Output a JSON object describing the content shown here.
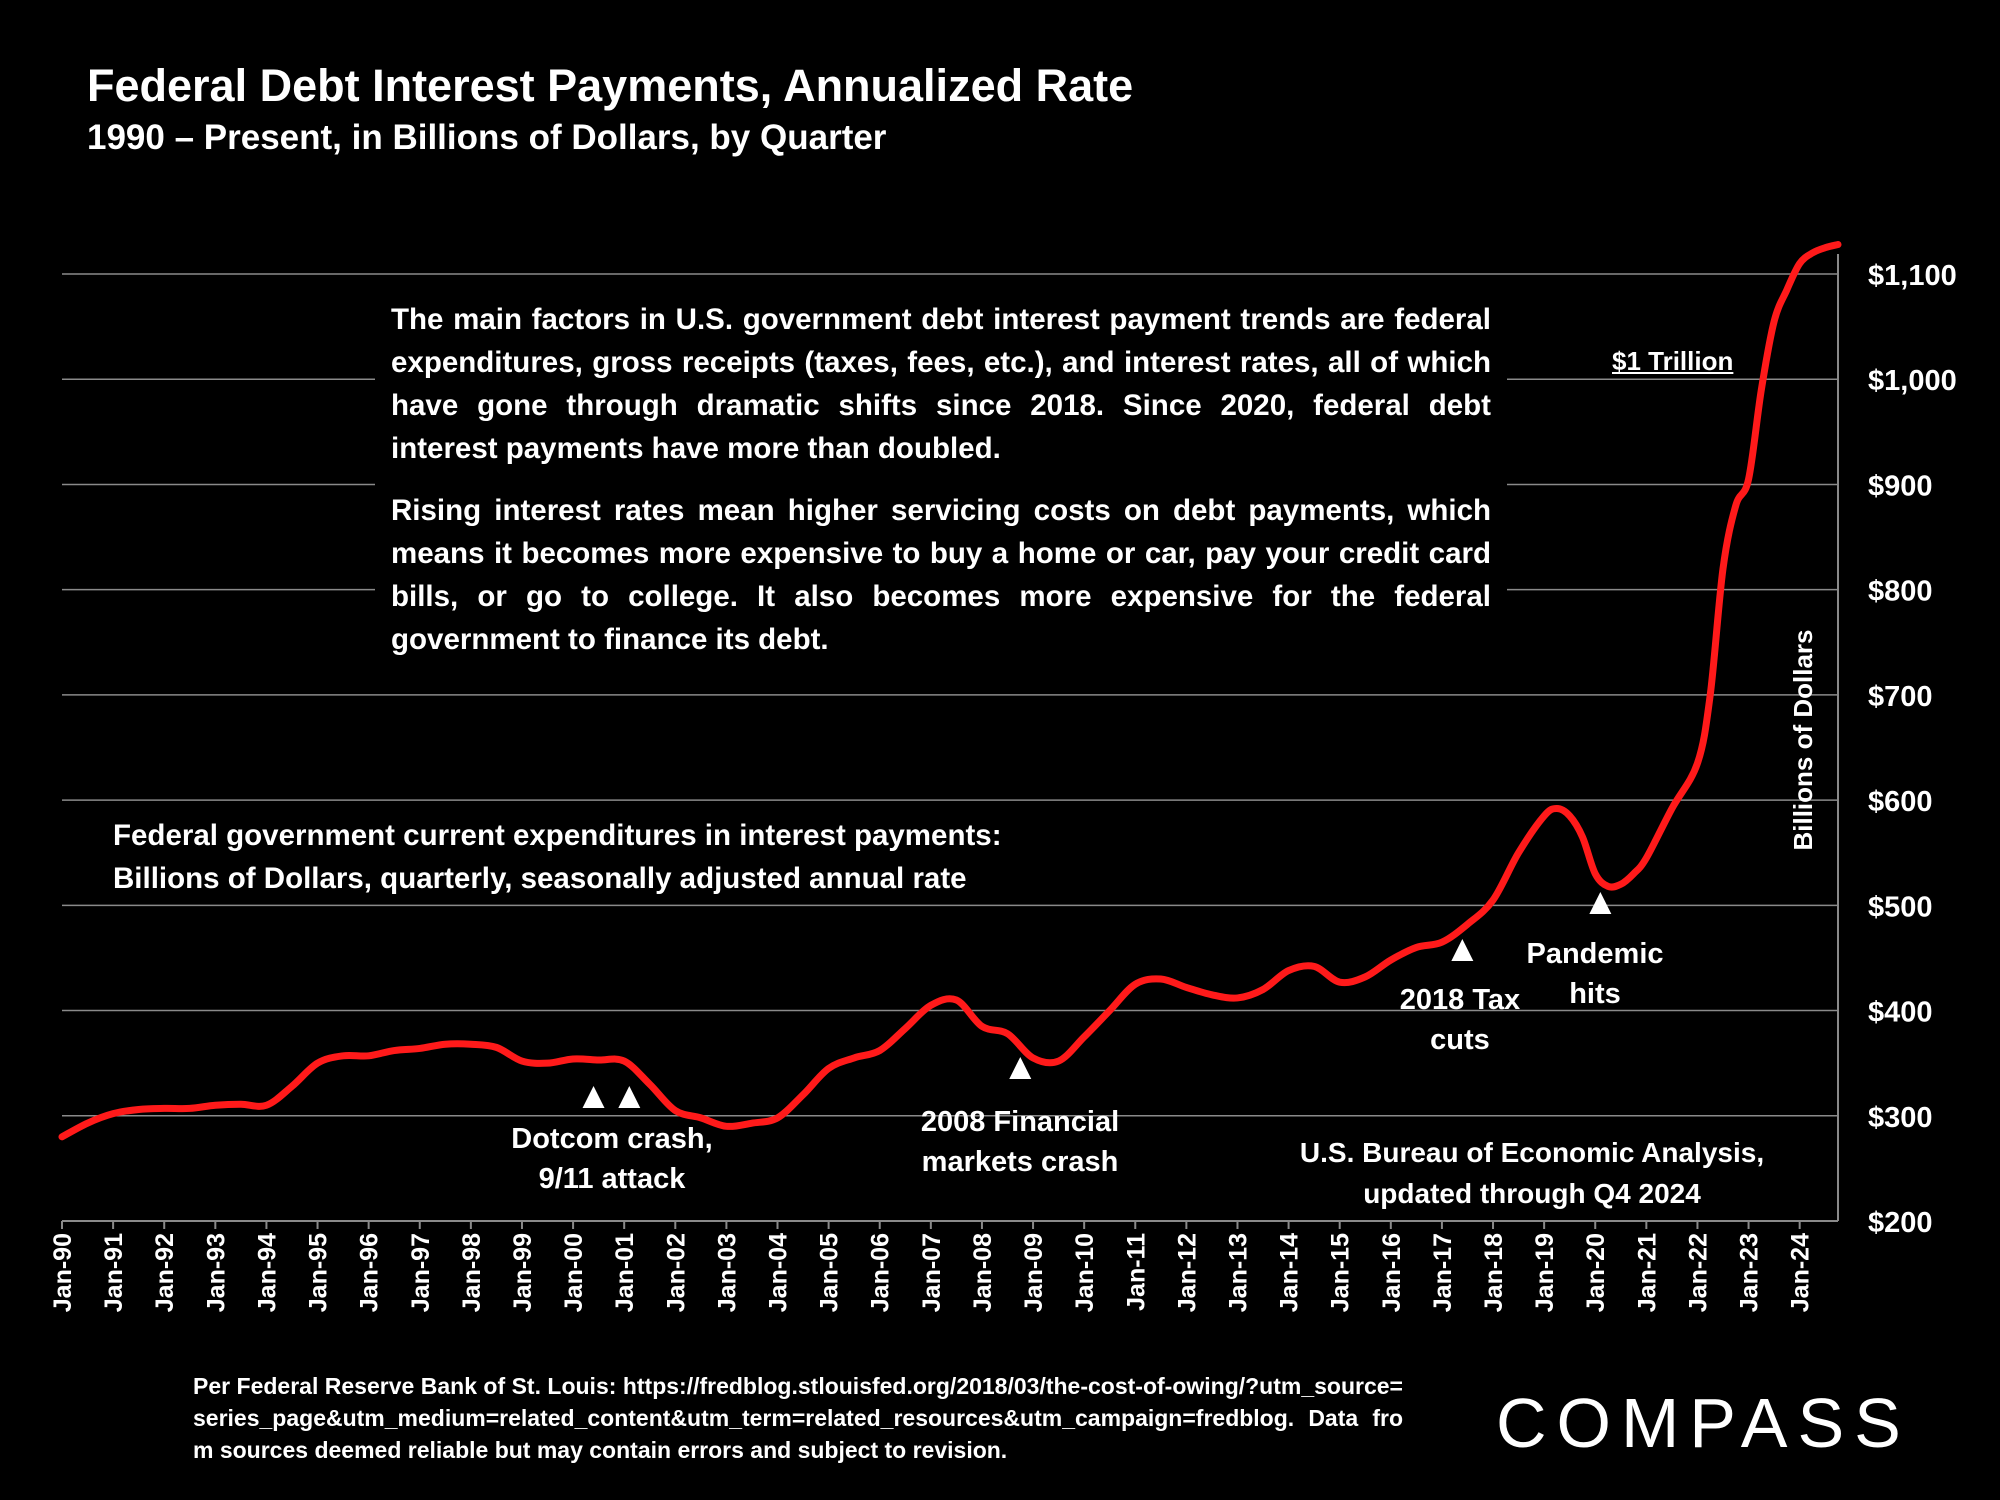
{
  "title": "Federal Debt Interest Payments, Annualized Rate",
  "subtitle": "1990 – Present, in Billions of Dollars, by Quarter",
  "text_box": {
    "para1": "The main factors in U.S. government debt interest payment trends are federal expenditures, gross receipts (taxes, fees, etc.), and interest rates, all of which have gone through dramatic shifts since 2018. Since 2020, federal debt interest payments have more than doubled.",
    "para2": "Rising interest rates mean higher servicing costs on debt payments, which means it becomes more expensive to buy a home or car, pay your credit card bills, or go to college. It also becomes more expensive for the federal government to finance its debt."
  },
  "series_note": {
    "line1": "Federal government current expenditures in interest payments:",
    "line2": "Billions of Dollars, quarterly, seasonally adjusted annual rate"
  },
  "source_note": {
    "line1": "U.S. Bureau of Economic Analysis,",
    "line2": "updated through Q4 2024"
  },
  "footnote": "Per Federal Reserve Bank of St. Louis: https://fredblog.stlouisfed.org/2018/03/the-cost-of-owing/?utm_source=series_page&utm_medium=related_content&utm_term=related_resources&utm_campaign=fredblog. Data from sources deemed reliable but may contain errors and subject to revision.",
  "logo": "COMPASS",
  "trillion_label": "$1 Trillion",
  "colors": {
    "line": "#ff1a1a",
    "grid": "#8a8a8a",
    "text": "#ffffff",
    "background": "#000000"
  },
  "chart_data": {
    "type": "line",
    "title": "Federal Debt Interest Payments, Annualized Rate",
    "ylabel": "Billions of Dollars",
    "xlabel": "",
    "ylim": [
      200,
      1100
    ],
    "yticks": [
      200,
      300,
      400,
      500,
      600,
      700,
      800,
      900,
      1000,
      1100
    ],
    "ytick_labels": [
      "$200",
      "$300",
      "$400",
      "$500",
      "$600",
      "$700",
      "$800",
      "$900",
      "$1,000",
      "$1,100"
    ],
    "xlim": [
      1990.0,
      2024.75
    ],
    "xticks": [
      1990,
      1991,
      1992,
      1993,
      1994,
      1995,
      1996,
      1997,
      1998,
      1999,
      2000,
      2001,
      2002,
      2003,
      2004,
      2005,
      2006,
      2007,
      2008,
      2009,
      2010,
      2011,
      2012,
      2013,
      2014,
      2015,
      2016,
      2017,
      2018,
      2019,
      2020,
      2021,
      2022,
      2023,
      2024
    ],
    "xtick_labels": [
      "Jan-90",
      "Jan-91",
      "Jan-92",
      "Jan-93",
      "Jan-94",
      "Jan-95",
      "Jan-96",
      "Jan-97",
      "Jan-98",
      "Jan-99",
      "Jan-00",
      "Jan-01",
      "Jan-02",
      "Jan-03",
      "Jan-04",
      "Jan-05",
      "Jan-06",
      "Jan-07",
      "Jan-08",
      "Jan-09",
      "Jan-10",
      "Jan-11",
      "Jan-12",
      "Jan-13",
      "Jan-14",
      "Jan-15",
      "Jan-16",
      "Jan-17",
      "Jan-18",
      "Jan-19",
      "Jan-20",
      "Jan-21",
      "Jan-22",
      "Jan-23",
      "Jan-24"
    ],
    "grid": true,
    "series": [
      {
        "name": "Federal government current expenditures in interest payments",
        "x": [
          1990.0,
          1990.5,
          1991.0,
          1991.5,
          1992.0,
          1992.5,
          1993.0,
          1993.5,
          1994.0,
          1994.5,
          1995.0,
          1995.5,
          1996.0,
          1996.5,
          1997.0,
          1997.5,
          1998.0,
          1998.5,
          1999.0,
          1999.5,
          2000.0,
          2000.5,
          2001.0,
          2001.5,
          2002.0,
          2002.5,
          2003.0,
          2003.5,
          2004.0,
          2004.5,
          2005.0,
          2005.5,
          2006.0,
          2006.5,
          2007.0,
          2007.5,
          2008.0,
          2008.5,
          2009.0,
          2009.5,
          2010.0,
          2010.5,
          2011.0,
          2011.5,
          2012.0,
          2012.5,
          2013.0,
          2013.5,
          2014.0,
          2014.5,
          2015.0,
          2015.5,
          2016.0,
          2016.5,
          2017.0,
          2017.5,
          2018.0,
          2018.5,
          2019.0,
          2019.25,
          2019.5,
          2019.75,
          2020.0,
          2020.25,
          2020.5,
          2020.75,
          2021.0,
          2021.5,
          2022.0,
          2022.25,
          2022.5,
          2022.75,
          2023.0,
          2023.25,
          2023.5,
          2023.75,
          2024.0,
          2024.25,
          2024.5,
          2024.75
        ],
        "values": [
          280,
          293,
          302,
          306,
          307,
          307,
          310,
          311,
          310,
          328,
          350,
          357,
          357,
          362,
          364,
          368,
          368,
          365,
          352,
          350,
          354,
          353,
          352,
          330,
          305,
          298,
          290,
          293,
          298,
          320,
          345,
          355,
          362,
          383,
          405,
          410,
          385,
          378,
          355,
          352,
          375,
          400,
          425,
          430,
          422,
          415,
          412,
          420,
          438,
          442,
          427,
          432,
          448,
          460,
          465,
          482,
          505,
          550,
          585,
          592,
          585,
          565,
          530,
          518,
          520,
          530,
          545,
          592,
          635,
          700,
          820,
          880,
          905,
          990,
          1055,
          1085,
          1110,
          1120,
          1125,
          1128
        ]
      }
    ],
    "annotations": [
      {
        "label": "Dotcom crash,\n9/11 attack",
        "line1": "Dotcom crash,",
        "line2": "9/11 attack",
        "markers_x": [
          2000.4,
          2001.1
        ]
      },
      {
        "label": "2008 Financial\nmarkets crash",
        "line1": "2008 Financial",
        "line2": "markets crash",
        "markers_x": [
          2008.75
        ]
      },
      {
        "label": "2018 Tax\ncuts",
        "line1": "2018 Tax",
        "line2": "cuts",
        "markers_x": [
          2017.4
        ]
      },
      {
        "label": "Pandemic\nhits",
        "line1": "Pandemic",
        "line2": "hits",
        "markers_x": [
          2020.1
        ]
      }
    ]
  }
}
